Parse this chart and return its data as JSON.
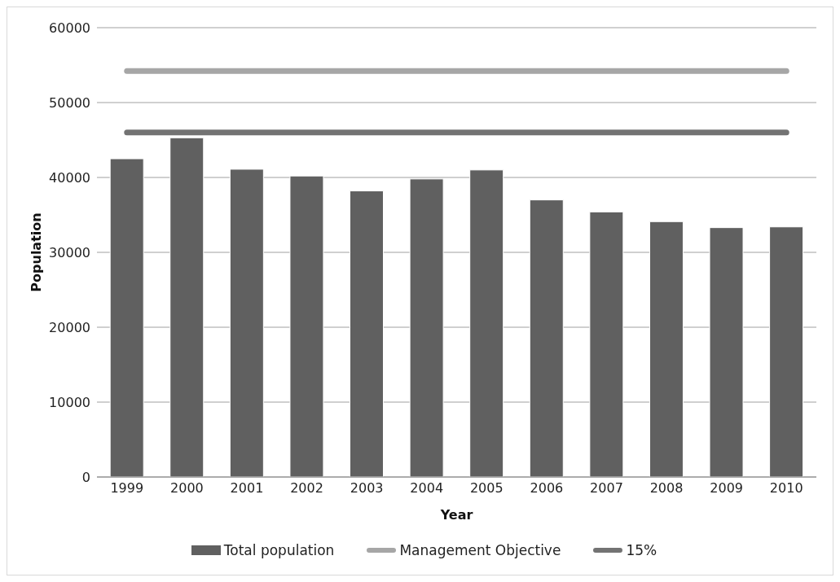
{
  "chart_data": {
    "type": "bar",
    "xlabel": "Year",
    "ylabel": "Population",
    "categories": [
      "1999",
      "2000",
      "2001",
      "2002",
      "2003",
      "2004",
      "2005",
      "2006",
      "2007",
      "2008",
      "2009",
      "2010"
    ],
    "series": [
      {
        "name": "Total population",
        "color": "#606060",
        "values": [
          42500,
          45300,
          41100,
          40200,
          38200,
          39800,
          41000,
          37000,
          35400,
          34100,
          33300,
          33400
        ]
      },
      {
        "name": "Management Objective",
        "type": "line",
        "color": "#a6a6a6",
        "values": [
          54200,
          54200,
          54200,
          54200,
          54200,
          54200,
          54200,
          54200,
          54200,
          54200,
          54200,
          54200
        ]
      },
      {
        "name": "15%",
        "type": "line",
        "color": "#737373",
        "values": [
          46000,
          46000,
          46000,
          46000,
          46000,
          46000,
          46000,
          46000,
          46000,
          46000,
          46000,
          46000
        ]
      }
    ],
    "ylim": [
      0,
      60000
    ],
    "yticks": [
      0,
      10000,
      20000,
      30000,
      40000,
      50000,
      60000
    ],
    "grid": "y",
    "legend": "bottom",
    "marker": "none"
  }
}
